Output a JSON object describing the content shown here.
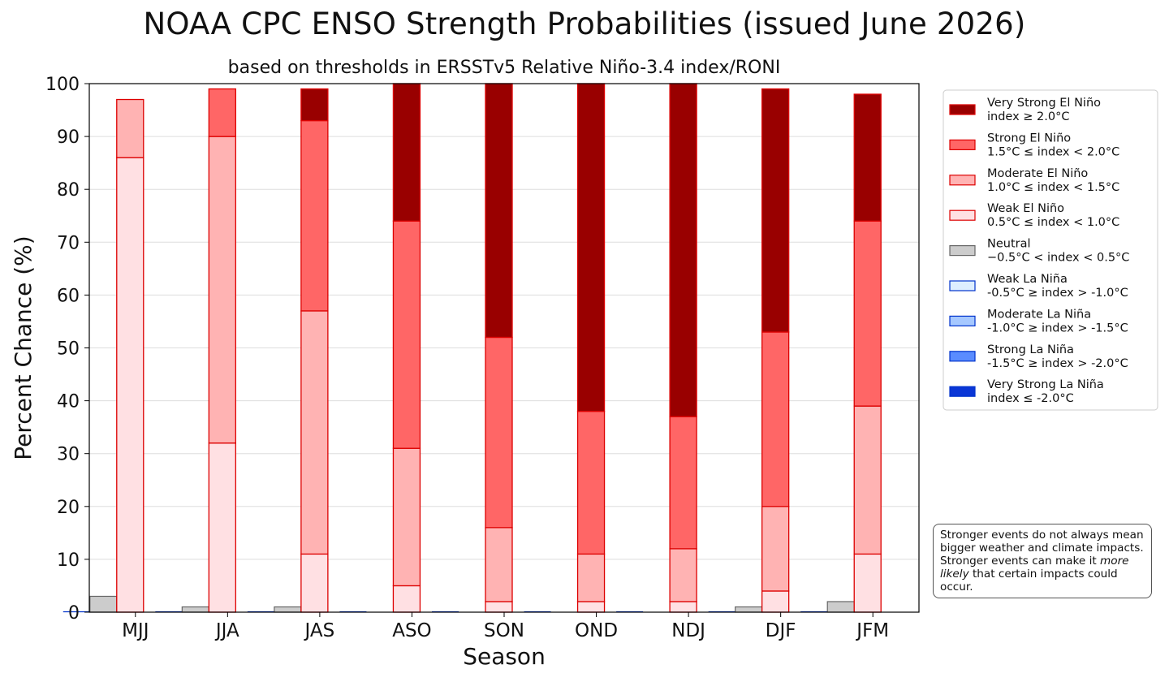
{
  "chart_data": {
    "type": "bar",
    "title": "NOAA CPC ENSO Strength Probabilities (issued June 2026)",
    "subtitle": "based on thresholds in ERSSTv5 Relative Niño-3.4 index/RONI",
    "xlabel": "Season",
    "ylabel": "Percent Chance (%)",
    "ylim": [
      0,
      100
    ],
    "yticks": [
      0,
      10,
      20,
      30,
      40,
      50,
      60,
      70,
      80,
      90,
      100
    ],
    "grid": "horizontal",
    "legend_position": "right",
    "categories": [
      "MJJ",
      "JJA",
      "JAS",
      "ASO",
      "SON",
      "OND",
      "NDJ",
      "DJF",
      "JFM"
    ],
    "la_nina_stack": [
      {
        "name": "Weak La Niña",
        "color": "#ddeeff",
        "edge": "#0033cc",
        "values": [
          0,
          0,
          0,
          0,
          0,
          0,
          0,
          0,
          0
        ]
      },
      {
        "name": "Moderate La Niña",
        "color": "#a6c8ff",
        "edge": "#0033cc",
        "values": [
          0,
          0,
          0,
          0,
          0,
          0,
          0,
          0,
          0
        ]
      },
      {
        "name": "Strong La Niña",
        "color": "#5a8cff",
        "edge": "#0033cc",
        "values": [
          0,
          0,
          0,
          0,
          0,
          0,
          0,
          0,
          0
        ]
      },
      {
        "name": "Very Strong La Niña",
        "color": "#0a36d6",
        "edge": "#0033cc",
        "values": [
          0,
          0,
          0,
          0,
          0,
          0,
          0,
          0,
          0
        ]
      }
    ],
    "neutral": {
      "name": "Neutral",
      "color": "#cccccc",
      "edge": "#666666",
      "values": [
        3,
        1,
        1,
        0,
        0,
        0,
        0,
        1,
        2
      ]
    },
    "el_nino_stack": [
      {
        "name": "Weak El Niño",
        "color": "#ffe0e3",
        "edge": "#dd0000",
        "values": [
          86,
          32,
          11,
          5,
          2,
          2,
          2,
          4,
          11
        ]
      },
      {
        "name": "Moderate El Niño",
        "color": "#ffb3b3",
        "edge": "#dd0000",
        "values": [
          11,
          58,
          46,
          26,
          14,
          9,
          10,
          16,
          28
        ]
      },
      {
        "name": "Strong El Niño",
        "color": "#ff6666",
        "edge": "#dd0000",
        "values": [
          0,
          9,
          36,
          43,
          36,
          27,
          25,
          33,
          35
        ]
      },
      {
        "name": "Very Strong El Niño",
        "color": "#990000",
        "edge": "#dd0000",
        "values": [
          0,
          0,
          6,
          26,
          48,
          62,
          63,
          46,
          24
        ]
      }
    ],
    "legend": [
      {
        "line1": "Very Strong El Niño",
        "line2": "index ≥ 2.0°C",
        "color": "#990000",
        "edge": "#dd0000"
      },
      {
        "line1": "Strong El Niño",
        "line2": "1.5°C ≤ index < 2.0°C",
        "color": "#ff6666",
        "edge": "#dd0000"
      },
      {
        "line1": "Moderate El Niño",
        "line2": "1.0°C ≤ index < 1.5°C",
        "color": "#ffb3b3",
        "edge": "#dd0000"
      },
      {
        "line1": "Weak El Niño",
        "line2": "0.5°C ≤ index < 1.0°C",
        "color": "#ffe0e3",
        "edge": "#dd0000"
      },
      {
        "line1": "Neutral",
        "line2": "−0.5°C < index < 0.5°C",
        "color": "#cccccc",
        "edge": "#666666"
      },
      {
        "line1": "Weak La Niña",
        "line2": "-0.5°C ≥ index > -1.0°C",
        "color": "#ddeeff",
        "edge": "#0033cc"
      },
      {
        "line1": "Moderate La Niña",
        "line2": "-1.0°C ≥ index > -1.5°C",
        "color": "#a6c8ff",
        "edge": "#0033cc"
      },
      {
        "line1": "Strong La Niña",
        "line2": "-1.5°C ≥ index > -2.0°C",
        "color": "#5a8cff",
        "edge": "#0033cc"
      },
      {
        "line1": "Very Strong La Niña",
        "line2": "index ≤ -2.0°C",
        "color": "#0a36d6",
        "edge": "#0033cc"
      }
    ],
    "note": {
      "before": "Stronger events do not always mean bigger weather and climate impacts. Stronger events can make it ",
      "emphasis": "more likely",
      "after": " that certain impacts could occur."
    }
  }
}
